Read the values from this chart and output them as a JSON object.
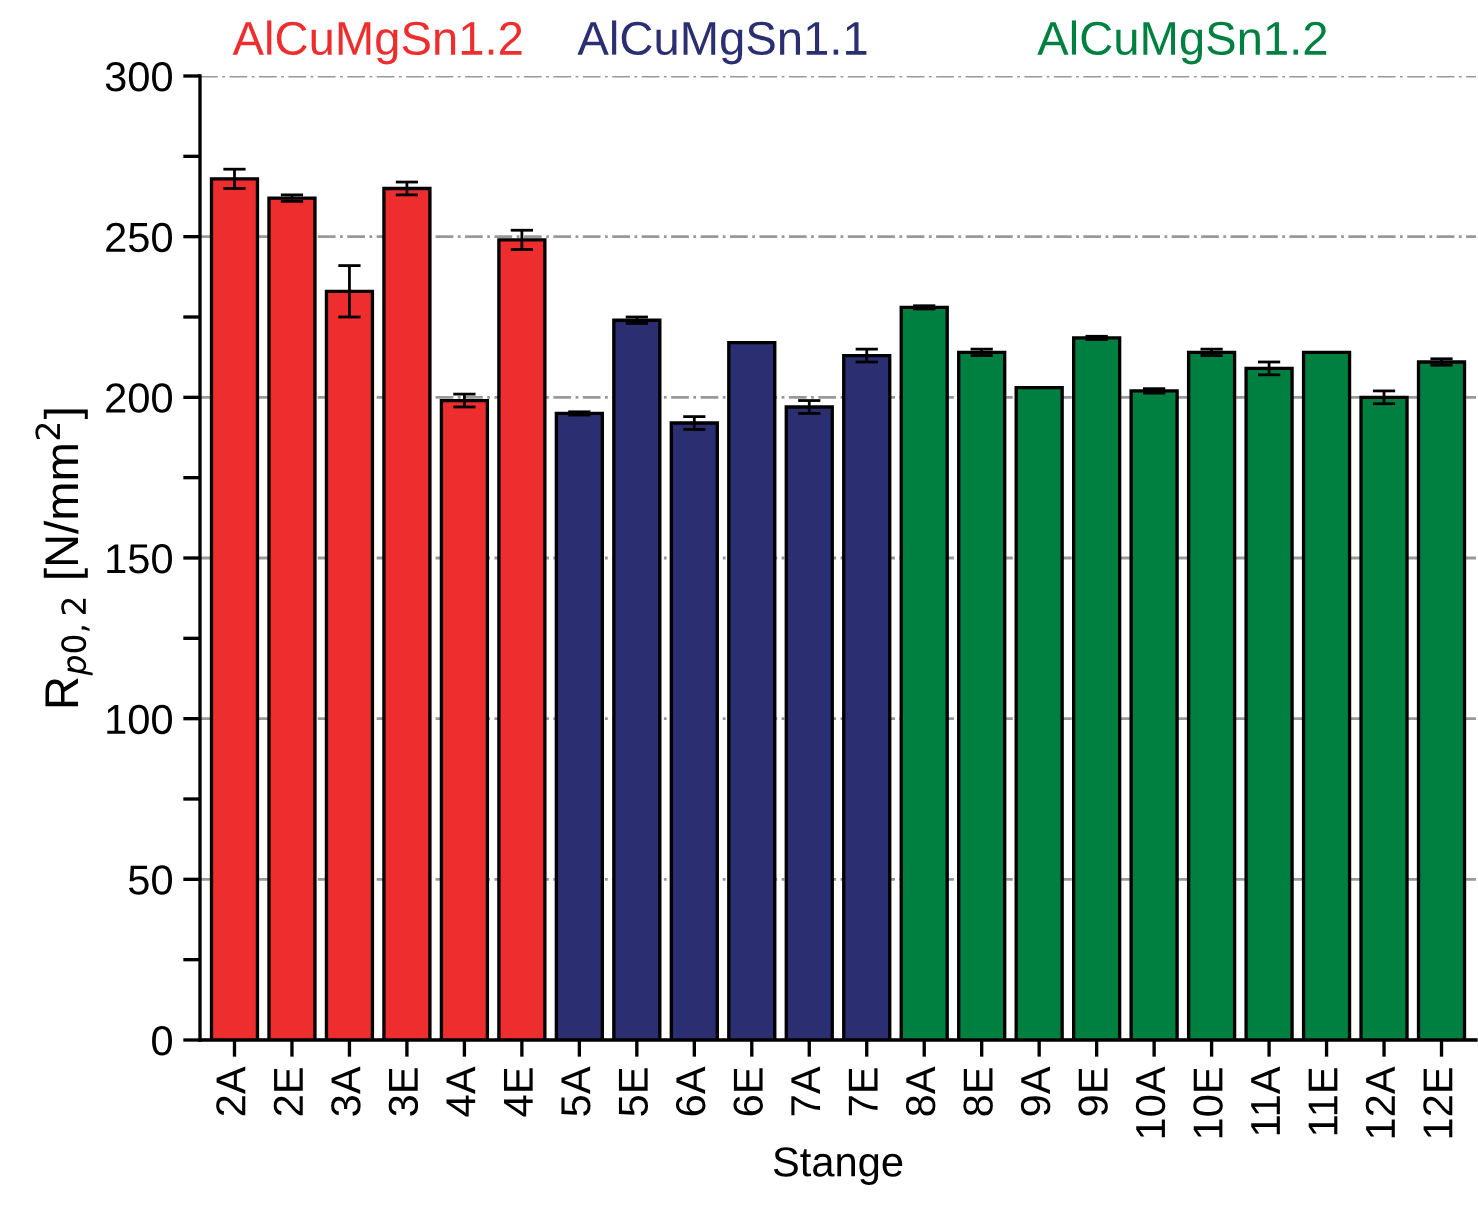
{
  "chart_data": {
    "type": "bar",
    "xlabel": "Stange",
    "ylabel": "R$_{p0,2}$ [N/mm$^{2}$]",
    "categories": [
      "2A",
      "2E",
      "3A",
      "3E",
      "4A",
      "4E",
      "5A",
      "5E",
      "6A",
      "6E",
      "7A",
      "7E",
      "8A",
      "8E",
      "9A",
      "9E",
      "10A",
      "10E",
      "11A",
      "11E",
      "12A",
      "12E"
    ],
    "series": [
      {
        "name": "AlCuMgSn1.2",
        "color": "#ee2e2e",
        "values": [
          268,
          262,
          233,
          265,
          199,
          249,
          null,
          null,
          null,
          null,
          null,
          null,
          null,
          null,
          null,
          null,
          null,
          null,
          null,
          null,
          null,
          null
        ],
        "errors": [
          3,
          1,
          8,
          2,
          2,
          3,
          null,
          null,
          null,
          null,
          null,
          null,
          null,
          null,
          null,
          null,
          null,
          null,
          null,
          null,
          null,
          null
        ]
      },
      {
        "name": "AlCuMgSn1.1",
        "color": "#2b2f72",
        "values": [
          null,
          null,
          null,
          null,
          null,
          null,
          195,
          224,
          192,
          217,
          197,
          213,
          null,
          null,
          null,
          null,
          null,
          null,
          null,
          null,
          null,
          null
        ],
        "errors": [
          null,
          null,
          null,
          null,
          null,
          null,
          0.5,
          1,
          2,
          null,
          2,
          2,
          null,
          null,
          null,
          null,
          null,
          null,
          null,
          null,
          null,
          null
        ]
      },
      {
        "name": "AlCuMgSn1.2",
        "color": "#008040",
        "values": [
          null,
          null,
          null,
          null,
          null,
          null,
          null,
          null,
          null,
          null,
          null,
          null,
          228,
          214,
          203,
          218.5,
          202,
          214,
          209,
          214,
          200,
          211
        ],
        "errors": [
          null,
          null,
          null,
          null,
          null,
          null,
          null,
          null,
          null,
          null,
          null,
          null,
          0.5,
          1,
          null,
          0.5,
          0.7,
          1,
          2,
          null,
          2,
          1
        ]
      }
    ],
    "ylim": [
      0,
      300
    ],
    "yticks": [
      0,
      {
        "value": 25,
        "label": null
      },
      50,
      {
        "value": 75,
        "label": null
      },
      100,
      {
        "value": 125,
        "label": null
      },
      150,
      {
        "value": 175,
        "label": null
      },
      200,
      {
        "value": 225,
        "label": null
      },
      250,
      {
        "value": 275,
        "label": null
      },
      300
    ],
    "grid": "y",
    "legend": false
  }
}
